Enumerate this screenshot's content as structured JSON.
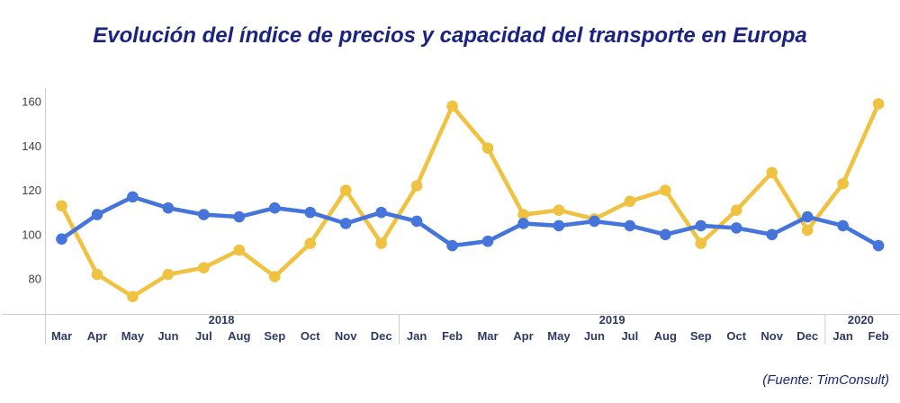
{
  "title": "Evolución del índice de precios y capacidad del transporte en Europa",
  "source": "(Fuente: TimConsult)",
  "colors": {
    "title_text": "#1B2380",
    "source_text": "#1B2380",
    "axis_line": "#CCCCCC",
    "y_tick_label": "#3D4149",
    "month_label": "#2E3A66",
    "year_label": "#2E3A66"
  },
  "chart_data": {
    "type": "line",
    "title": "Evolución del índice de precios y capacidad del transporte en Europa",
    "xlabel": "",
    "ylabel": "",
    "y_ticks": [
      80,
      100,
      120,
      140,
      160
    ],
    "ylim": [
      64,
      166
    ],
    "grid": false,
    "legend": "none",
    "x_groups": [
      {
        "year": "2018",
        "months": [
          "Mar",
          "Apr",
          "May",
          "Jun",
          "Jul",
          "Aug",
          "Sep",
          "Oct",
          "Nov",
          "Dec"
        ]
      },
      {
        "year": "2019",
        "months": [
          "Jan",
          "Feb",
          "Mar",
          "Apr",
          "May",
          "Jun",
          "Jul",
          "Aug",
          "Sep",
          "Oct",
          "Nov",
          "Dec"
        ]
      },
      {
        "year": "2020",
        "months": [
          "Jan",
          "Feb"
        ]
      }
    ],
    "series": [
      {
        "id": "yellow",
        "color": "#F0C242",
        "values": [
          113,
          82,
          72,
          82,
          85,
          93,
          81,
          96,
          120,
          96,
          122,
          158,
          139,
          109,
          111,
          107,
          115,
          120,
          96,
          111,
          128,
          102,
          123,
          159
        ]
      },
      {
        "id": "blue",
        "color": "#4575DB",
        "values": [
          98,
          109,
          117,
          112,
          109,
          108,
          112,
          110,
          105,
          110,
          106,
          95,
          97,
          105,
          104,
          106,
          104,
          100,
          104,
          103,
          100,
          108,
          104,
          95
        ]
      }
    ]
  }
}
